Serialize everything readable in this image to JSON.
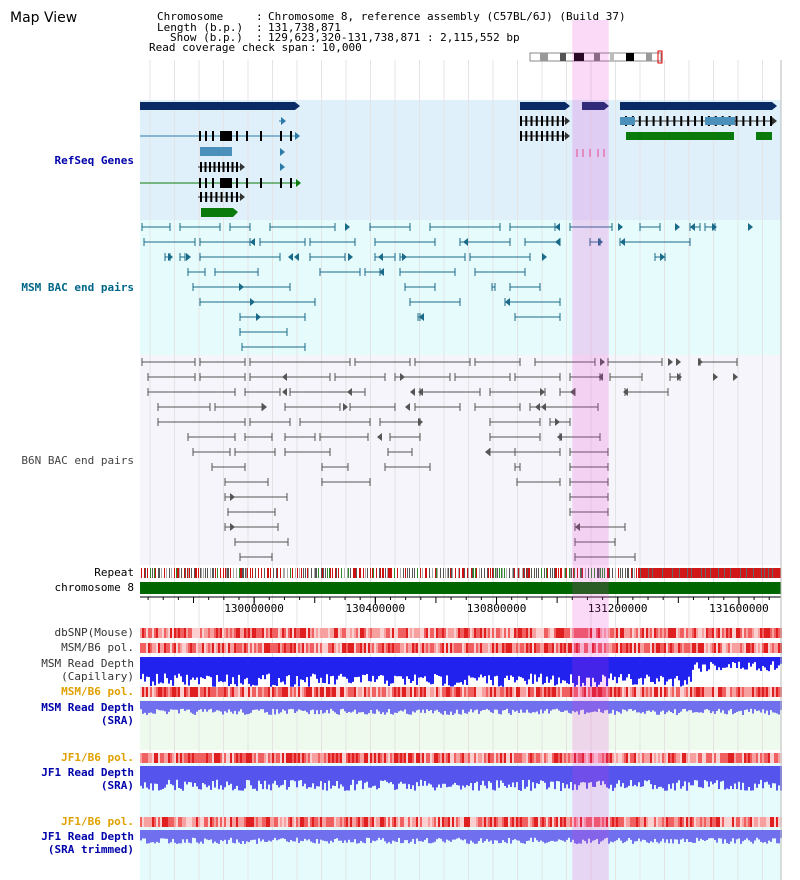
{
  "view": {
    "title": "Map View",
    "info_rows": [
      {
        "label": "Chromosome",
        "value": "Chromosome 8, reference assembly (C57BL/6J) (Build 37)"
      },
      {
        "label": "Length (b.p.)",
        "value": "131,738,871"
      },
      {
        "label": "Show (b.p.)",
        "value": "129,623,320-131,738,871 : 2,115,552 bp"
      },
      {
        "label": "Read coverage check span",
        "value": "10,000"
      }
    ],
    "range_start": 129623320,
    "range_end": 131738871,
    "highlight": [
      131050000,
      131170000
    ]
  },
  "tracks": {
    "refseq": {
      "label": "RefSeq Genes",
      "color": "#0000aa"
    },
    "msm_bac": {
      "label": "MSM BAC end pairs",
      "color": "#006688"
    },
    "b6n_bac": {
      "label": "B6N BAC end pairs",
      "color": "#444444"
    },
    "repeat": {
      "label": "Repeat"
    },
    "chromosome": {
      "label": "chromosome 8"
    }
  },
  "axis": {
    "ticks": [
      {
        "pos": 130000000,
        "label": "130000000"
      },
      {
        "pos": 130400000,
        "label": "130400000"
      },
      {
        "pos": 130800000,
        "label": "130800000"
      },
      {
        "pos": 131200000,
        "label": "131200000"
      },
      {
        "pos": 131600000,
        "label": "131600000"
      }
    ]
  },
  "bottom_tracks": [
    {
      "id": "dbsnp",
      "lines": [
        "dbSNP(Mouse)"
      ],
      "color": "#333333",
      "kind": "heat"
    },
    {
      "id": "msm_b6_pol_1",
      "lines": [
        "MSM/B6 pol."
      ],
      "color": "#333333",
      "kind": "heat"
    },
    {
      "id": "msm_depth_cap",
      "lines": [
        "MSM Read Depth",
        "(Capillary)"
      ],
      "color": "#333333",
      "kind": "depth"
    },
    {
      "id": "msm_b6_pol_2",
      "lines": [
        "MSM/B6 pol."
      ],
      "color": "#e0a000",
      "kind": "heat"
    },
    {
      "id": "msm_depth_sra",
      "lines": [
        "MSM Read Depth",
        "(SRA)"
      ],
      "color": "#0000aa",
      "kind": "depth"
    },
    {
      "id": "jf1_b6_pol_1",
      "lines": [
        "JF1/B6 pol."
      ],
      "color": "#e0a000",
      "kind": "heat"
    },
    {
      "id": "jf1_depth_sra",
      "lines": [
        "JF1 Read Depth",
        "(SRA)"
      ],
      "color": "#0000aa",
      "kind": "depth"
    },
    {
      "id": "jf1_b6_pol_2",
      "lines": [
        "JF1/B6 pol."
      ],
      "color": "#e0a000",
      "kind": "heat"
    },
    {
      "id": "jf1_depth_sra_trim",
      "lines": [
        "JF1 Read Depth",
        "(SRA trimmed)"
      ],
      "color": "#0000aa",
      "kind": "depth"
    }
  ]
}
